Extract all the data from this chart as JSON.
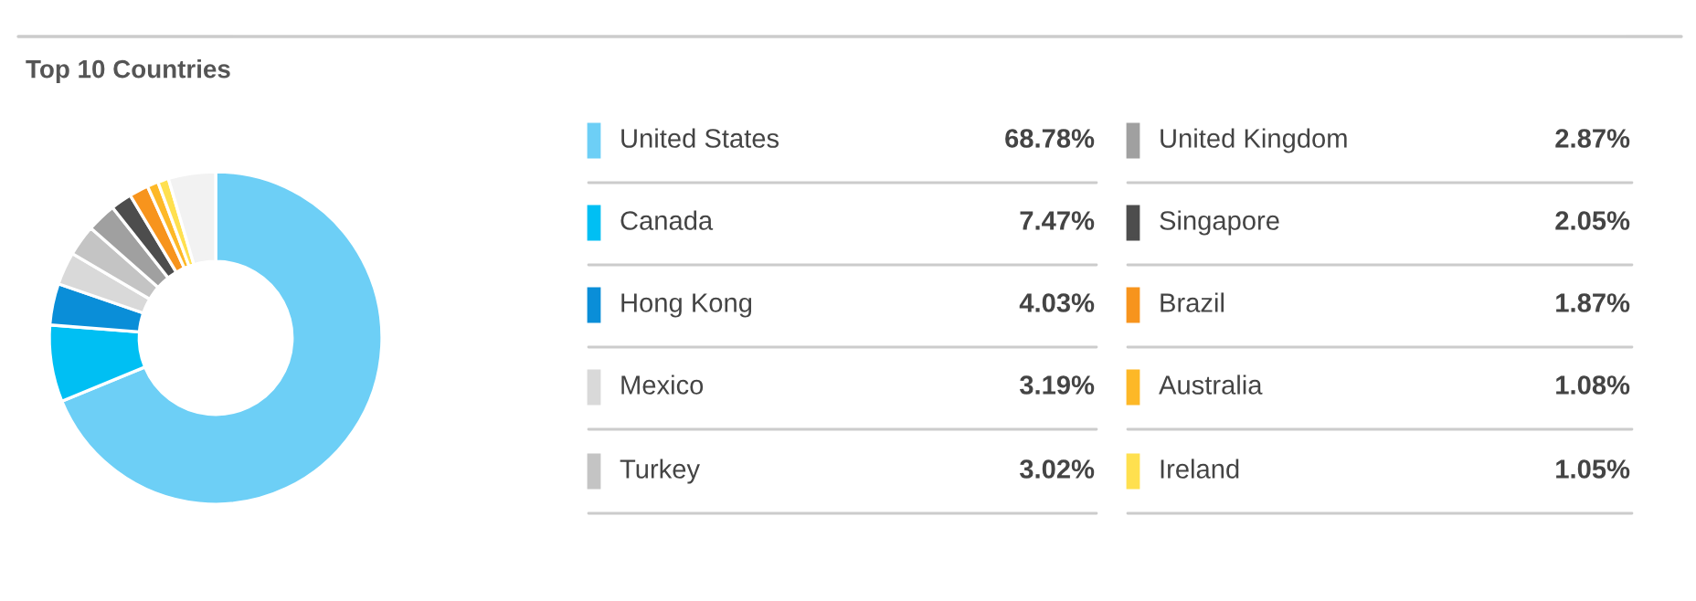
{
  "chart_data": {
    "type": "donut",
    "title": "Top 10 Countries",
    "categories": [
      "United States",
      "Canada",
      "Hong Kong",
      "Mexico",
      "Turkey",
      "United Kingdom",
      "Singapore",
      "Brazil",
      "Australia",
      "Ireland",
      null
    ],
    "values": [
      68.78,
      7.47,
      4.03,
      3.19,
      3.02,
      2.87,
      2.05,
      1.87,
      1.08,
      1.05,
      4.59
    ],
    "value_labels": [
      "68.78%",
      "7.47%",
      "4.03%",
      "3.19%",
      "3.02%",
      "2.87%",
      "2.05%",
      "1.87%",
      "1.08%",
      "1.05%",
      null
    ],
    "colors": [
      "#6dcff6",
      "#00bff3",
      "#0a8ed8",
      "#d9d9d9",
      "#c4c4c4",
      "#a0a0a0",
      "#4d4d4d",
      "#f7941d",
      "#fdb827",
      "#ffe04f",
      "#f2f2f2"
    ],
    "legend": "right"
  }
}
